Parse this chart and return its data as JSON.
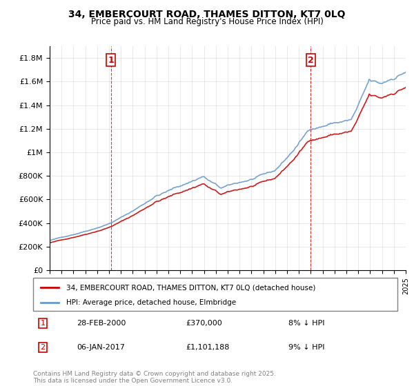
{
  "title_line1": "34, EMBERCOURT ROAD, THAMES DITTON, KT7 0LQ",
  "title_line2": "Price paid vs. HM Land Registry's House Price Index (HPI)",
  "sale1_date": "28-FEB-2000",
  "sale1_price": 370000,
  "sale1_label": "1",
  "sale1_note": "8% ↓ HPI",
  "sale2_date": "06-JAN-2017",
  "sale2_price": 1101188,
  "sale2_label": "2",
  "sale2_note": "9% ↓ HPI",
  "legend_property": "34, EMBERCOURT ROAD, THAMES DITTON, KT7 0LQ (detached house)",
  "legend_hpi": "HPI: Average price, detached house, Elmbridge",
  "footer": "Contains HM Land Registry data © Crown copyright and database right 2025.\nThis data is licensed under the Open Government Licence v3.0.",
  "property_color": "#cc0000",
  "hpi_color": "#6699cc",
  "vline_color": "#cc0000",
  "ylim": [
    0,
    1900000
  ],
  "yticks": [
    0,
    200000,
    400000,
    600000,
    800000,
    1000000,
    1200000,
    1400000,
    1600000,
    1800000
  ],
  "ytick_labels": [
    "£0",
    "£200K",
    "£400K",
    "£600K",
    "£800K",
    "£1M",
    "£1.2M",
    "£1.4M",
    "£1.6M",
    "£1.8M"
  ],
  "xstart": 1995,
  "xend": 2025
}
